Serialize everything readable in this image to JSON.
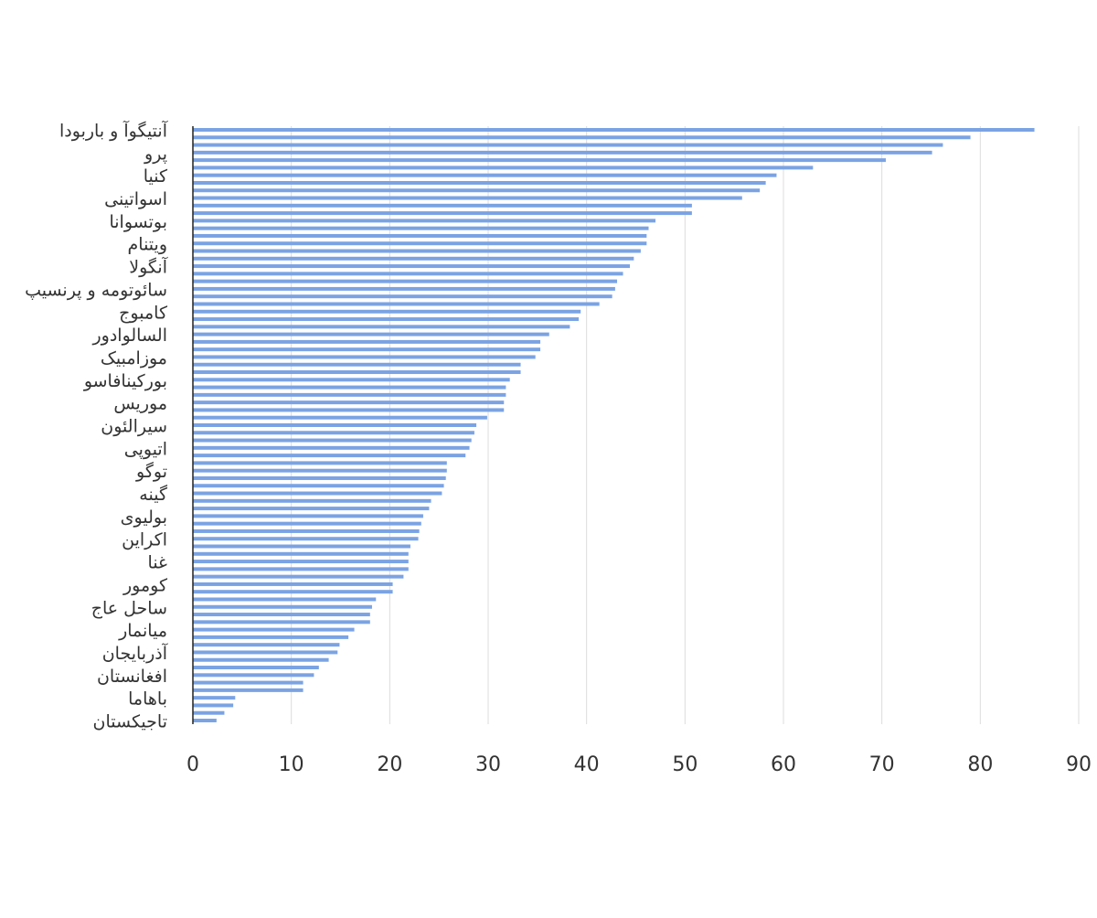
{
  "chart_data": {
    "type": "hbar",
    "color": "#7ba3e3",
    "grid": true,
    "xlim": [
      0,
      90
    ],
    "xticks": [
      0,
      10,
      20,
      30,
      40,
      50,
      60,
      70,
      80,
      90
    ],
    "categories": [
      "آنتیگوآ و باربودا",
      null,
      null,
      "پرو",
      null,
      null,
      "کنیا",
      null,
      null,
      "اسواتینی",
      null,
      null,
      "بوتسوانا",
      null,
      null,
      "ویتنام",
      null,
      null,
      "آنگولا",
      null,
      null,
      "سائوتومه و پرنسیپ",
      null,
      null,
      "کامبوج",
      null,
      null,
      "السالوادور",
      null,
      null,
      "موزامبیک",
      null,
      null,
      "بورکینافاسو",
      null,
      null,
      "موریس",
      null,
      null,
      "سیرالئون",
      null,
      null,
      "اتیوپی",
      null,
      null,
      "توگو",
      null,
      null,
      "گینه",
      null,
      null,
      "بولیوی",
      null,
      null,
      "اکراین",
      null,
      null,
      "غنا",
      null,
      null,
      "کومور",
      null,
      null,
      "ساحل عاج",
      null,
      null,
      "میانمار",
      null,
      null,
      "آذربایجان",
      null,
      null,
      "افغانستان",
      null,
      null,
      "باهاما",
      null,
      null,
      "تاجیکستان"
    ],
    "values": [
      85.5,
      79.0,
      76.2,
      75.1,
      70.4,
      63.0,
      59.3,
      58.2,
      57.6,
      55.8,
      50.7,
      50.7,
      47.0,
      46.3,
      46.1,
      46.1,
      45.5,
      44.8,
      44.4,
      43.7,
      43.1,
      42.9,
      42.6,
      41.3,
      39.4,
      39.2,
      38.3,
      36.2,
      35.3,
      35.3,
      34.8,
      33.3,
      33.3,
      32.2,
      31.8,
      31.8,
      31.6,
      31.6,
      29.9,
      28.8,
      28.6,
      28.3,
      28.1,
      27.7,
      25.8,
      25.8,
      25.7,
      25.5,
      25.3,
      24.2,
      24.0,
      23.4,
      23.2,
      23.0,
      22.9,
      22.1,
      21.9,
      21.9,
      21.9,
      21.4,
      20.3,
      20.3,
      18.6,
      18.2,
      18.0,
      18.0,
      16.4,
      15.8,
      14.9,
      14.7,
      13.8,
      12.8,
      12.3,
      11.2,
      11.2,
      4.3,
      4.1,
      3.2,
      2.4
    ]
  }
}
